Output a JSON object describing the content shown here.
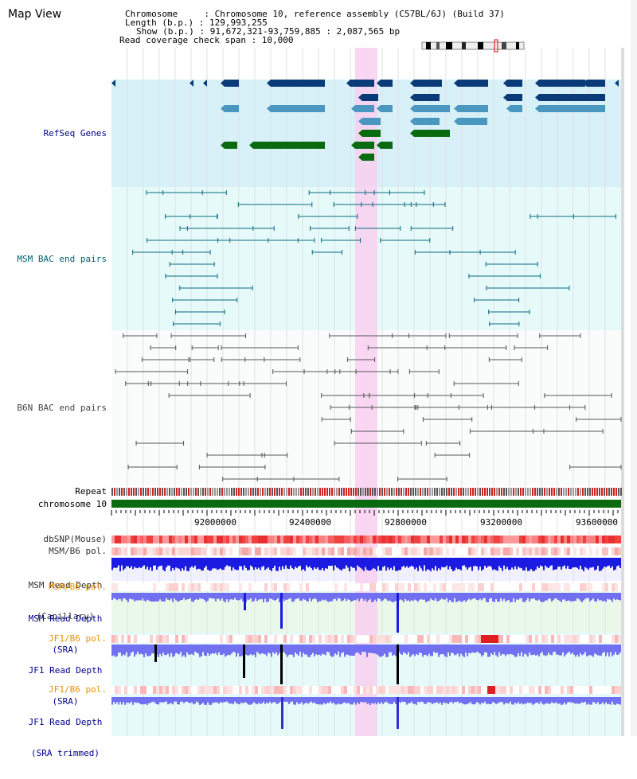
{
  "page": {
    "title": "Map View",
    "info": {
      "chromosome": "Chromosome     : Chromosome 10, reference assembly (C57BL/6J) (Build 37)",
      "length": "Length (b.p.) : 129,993,255",
      "show": "Show (b.p.) : 91,672,321-93,759,885 : 2,087,565 bp",
      "coverage": "Read coverage check span : 10,000"
    }
  },
  "tracks": {
    "refseq": "RefSeq Genes",
    "msm_bac": "MSM BAC end pairs",
    "b6n_bac": "B6N BAC end pairs",
    "repeat": "Repeat",
    "chromosome": "chromosome 10",
    "dbsnp": "dbSNP(Mouse)",
    "msm_pol": "MSM/B6 pol.",
    "msm_depth_cap_1": "MSM Read Depth",
    "msm_depth_cap_2": "(Capillary)",
    "msm_pol_2": "MSM/B6 pol.",
    "msm_depth_sra_1": "MSM Read Depth",
    "msm_depth_sra_2": "(SRA)",
    "jf1_pol_1": "JF1/B6 pol.",
    "jf1_depth_sra_1": "JF1 Read Depth",
    "jf1_depth_sra_2": "(SRA)",
    "jf1_pol_2": "JF1/B6 pol.",
    "jf1_depth_trim_1": "JF1 Read Depth",
    "jf1_depth_trim_2": "(SRA trimmed)"
  },
  "axis": {
    "ticks": [
      "92000000",
      "92400000",
      "92800000",
      "93200000",
      "93600000"
    ]
  },
  "colors": {
    "refseq_bg": "#d8f0f8",
    "bac_bg": "#e6fafa",
    "highlight": "#f8d0f0",
    "gene_dark": "#0a3a78",
    "gene_mid": "#4a98c0",
    "gene_green": "#0a6a10",
    "msm_line": "#0a6a80",
    "b6n_line": "#555555",
    "chrom_bar": "#0a6a10",
    "snp_red": "#f04040",
    "depth_blue": "#1a1ae0",
    "depth_light": "#7070f0",
    "label_blue": "#00008b",
    "label_orange": "#e89000",
    "label_teal": "#006070"
  }
}
